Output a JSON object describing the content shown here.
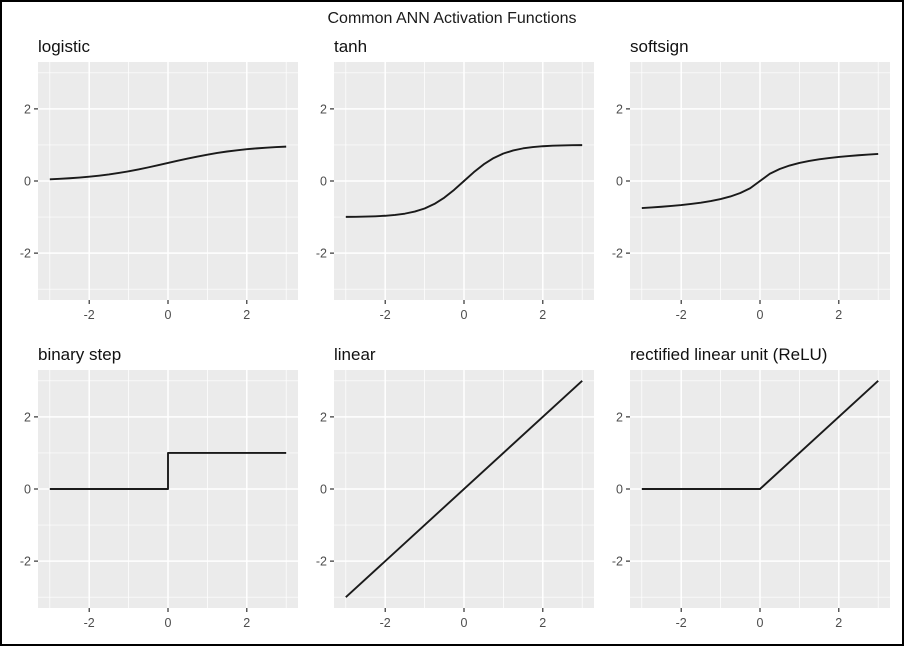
{
  "title": "Common ANN Activation Functions",
  "colors": {
    "page_bg": "#FFFFFF",
    "border": "#000000",
    "panel_bg": "#EBEBEB",
    "grid_major": "#FFFFFF",
    "grid_minor": "#F5F5F5",
    "line": "#1A1A1A",
    "tick_mark": "#333333",
    "tick_label": "#4D4D4D",
    "title_text": "#1A1A1A"
  },
  "axes": {
    "xlim": [
      -3.3,
      3.3
    ],
    "ylim": [
      -3.3,
      3.3
    ],
    "x_ticks": [
      -2,
      0,
      2
    ],
    "y_ticks": [
      -2,
      0,
      2
    ],
    "x_minor": [
      -3,
      -1,
      1,
      3
    ],
    "y_minor": [
      -3,
      -1,
      1,
      3
    ],
    "grid": true,
    "legend": "none"
  },
  "chart_data": [
    {
      "type": "line",
      "title": "logistic",
      "xlabel": "",
      "ylabel": "",
      "points": [
        [
          -3,
          0.047
        ],
        [
          -2.75,
          0.06
        ],
        [
          -2.5,
          0.076
        ],
        [
          -2.25,
          0.095
        ],
        [
          -2,
          0.119
        ],
        [
          -1.75,
          0.148
        ],
        [
          -1.5,
          0.182
        ],
        [
          -1.25,
          0.223
        ],
        [
          -1,
          0.269
        ],
        [
          -0.75,
          0.321
        ],
        [
          -0.5,
          0.378
        ],
        [
          -0.25,
          0.438
        ],
        [
          0,
          0.5
        ],
        [
          0.25,
          0.562
        ],
        [
          0.5,
          0.622
        ],
        [
          0.75,
          0.679
        ],
        [
          1,
          0.731
        ],
        [
          1.25,
          0.777
        ],
        [
          1.5,
          0.818
        ],
        [
          1.75,
          0.852
        ],
        [
          2,
          0.881
        ],
        [
          2.25,
          0.905
        ],
        [
          2.5,
          0.924
        ],
        [
          2.75,
          0.94
        ],
        [
          3,
          0.953
        ]
      ]
    },
    {
      "type": "line",
      "title": "tanh",
      "xlabel": "",
      "ylabel": "",
      "points": [
        [
          -3,
          -0.995
        ],
        [
          -2.75,
          -0.992
        ],
        [
          -2.5,
          -0.987
        ],
        [
          -2.25,
          -0.978
        ],
        [
          -2,
          -0.964
        ],
        [
          -1.75,
          -0.941
        ],
        [
          -1.5,
          -0.905
        ],
        [
          -1.25,
          -0.848
        ],
        [
          -1,
          -0.762
        ],
        [
          -0.75,
          -0.635
        ],
        [
          -0.5,
          -0.462
        ],
        [
          -0.25,
          -0.245
        ],
        [
          0,
          0
        ],
        [
          0.25,
          0.245
        ],
        [
          0.5,
          0.462
        ],
        [
          0.75,
          0.635
        ],
        [
          1,
          0.762
        ],
        [
          1.25,
          0.848
        ],
        [
          1.5,
          0.905
        ],
        [
          1.75,
          0.941
        ],
        [
          2,
          0.964
        ],
        [
          2.25,
          0.978
        ],
        [
          2.5,
          0.987
        ],
        [
          2.75,
          0.992
        ],
        [
          3,
          0.995
        ]
      ]
    },
    {
      "type": "line",
      "title": "softsign",
      "xlabel": "",
      "ylabel": "",
      "points": [
        [
          -3,
          -0.75
        ],
        [
          -2.75,
          -0.733
        ],
        [
          -2.5,
          -0.714
        ],
        [
          -2.25,
          -0.692
        ],
        [
          -2,
          -0.667
        ],
        [
          -1.75,
          -0.636
        ],
        [
          -1.5,
          -0.6
        ],
        [
          -1.25,
          -0.556
        ],
        [
          -1,
          -0.5
        ],
        [
          -0.75,
          -0.429
        ],
        [
          -0.5,
          -0.333
        ],
        [
          -0.25,
          -0.2
        ],
        [
          0,
          0
        ],
        [
          0.25,
          0.2
        ],
        [
          0.5,
          0.333
        ],
        [
          0.75,
          0.429
        ],
        [
          1,
          0.5
        ],
        [
          1.25,
          0.556
        ],
        [
          1.5,
          0.6
        ],
        [
          1.75,
          0.636
        ],
        [
          2,
          0.667
        ],
        [
          2.25,
          0.692
        ],
        [
          2.5,
          0.714
        ],
        [
          2.75,
          0.733
        ],
        [
          3,
          0.75
        ]
      ]
    },
    {
      "type": "line",
      "title": "binary step",
      "xlabel": "",
      "ylabel": "",
      "points": [
        [
          -3,
          0
        ],
        [
          0,
          0
        ],
        [
          0,
          1
        ],
        [
          3,
          1
        ]
      ]
    },
    {
      "type": "line",
      "title": "linear",
      "xlabel": "",
      "ylabel": "",
      "points": [
        [
          -3,
          -3
        ],
        [
          3,
          3
        ]
      ]
    },
    {
      "type": "line",
      "title": "rectified linear unit (ReLU)",
      "xlabel": "",
      "ylabel": "",
      "points": [
        [
          -3,
          0
        ],
        [
          0,
          0
        ],
        [
          3,
          3
        ]
      ]
    }
  ]
}
